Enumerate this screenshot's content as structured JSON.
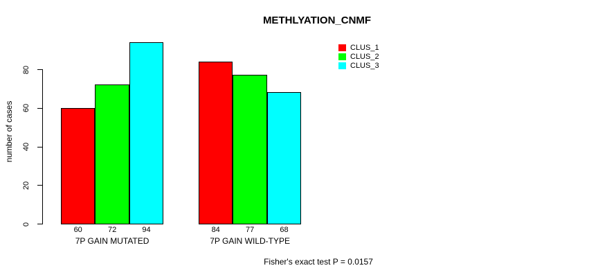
{
  "title": "METHLYATION_CNMF",
  "chart_data": {
    "type": "bar",
    "title": "METHLYATION_CNMF",
    "ylabel": "number of cases",
    "xlabel": "",
    "categories": [
      "7P GAIN MUTATED",
      "7P GAIN WILD-TYPE"
    ],
    "series": [
      {
        "name": "CLUS_1",
        "color": "#FF0000",
        "values": [
          60,
          84
        ]
      },
      {
        "name": "CLUS_2",
        "color": "#00FF00",
        "values": [
          72,
          77
        ]
      },
      {
        "name": "CLUS_3",
        "color": "#00FFFF",
        "values": [
          94,
          68
        ]
      }
    ],
    "yticks": [
      0,
      20,
      40,
      60,
      80
    ],
    "ylim": [
      0,
      80
    ],
    "grid": false,
    "bar_border_color": "#000000",
    "value_labels_shown": true,
    "legend_position": "top-right",
    "annotation": "Fisher's exact test P = 0.0157"
  }
}
